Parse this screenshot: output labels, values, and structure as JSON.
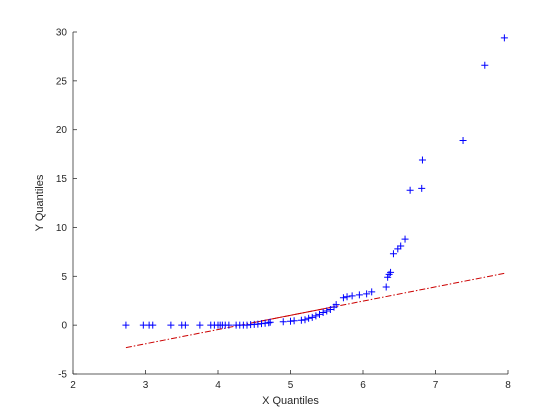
{
  "chart_data": {
    "type": "scatter",
    "title": "",
    "xlabel": "X Quantiles",
    "ylabel": "Y Quantiles",
    "xlim": [
      2,
      8
    ],
    "ylim": [
      -5,
      30
    ],
    "xticks": [
      2,
      3,
      4,
      5,
      6,
      7,
      8
    ],
    "yticks": [
      -5,
      0,
      5,
      10,
      15,
      20,
      25,
      30
    ],
    "grid": false,
    "legend": "none",
    "colors": {
      "points": "#0000ff",
      "reference_line": "#cc0000",
      "axes": "#262626"
    },
    "series": [
      {
        "marker": "plus",
        "points": [
          [
            2.73,
            0.0
          ],
          [
            2.97,
            0.0
          ],
          [
            3.05,
            0.0
          ],
          [
            3.1,
            0.0
          ],
          [
            3.35,
            0.0
          ],
          [
            3.5,
            0.0
          ],
          [
            3.55,
            0.0
          ],
          [
            3.75,
            0.0
          ],
          [
            3.9,
            0.0
          ],
          [
            3.95,
            0.0
          ],
          [
            4.0,
            0.0
          ],
          [
            4.03,
            0.0
          ],
          [
            4.06,
            0.0
          ],
          [
            4.1,
            0.0
          ],
          [
            4.15,
            0.0
          ],
          [
            4.25,
            0.0
          ],
          [
            4.3,
            0.0
          ],
          [
            4.35,
            0.0
          ],
          [
            4.4,
            0.0
          ],
          [
            4.45,
            0.05
          ],
          [
            4.5,
            0.08
          ],
          [
            4.55,
            0.1
          ],
          [
            4.6,
            0.15
          ],
          [
            4.65,
            0.2
          ],
          [
            4.7,
            0.25
          ],
          [
            4.72,
            0.3
          ],
          [
            4.9,
            0.35
          ],
          [
            5.0,
            0.4
          ],
          [
            5.05,
            0.45
          ],
          [
            5.15,
            0.5
          ],
          [
            5.2,
            0.55
          ],
          [
            5.25,
            0.7
          ],
          [
            5.3,
            0.8
          ],
          [
            5.35,
            0.95
          ],
          [
            5.4,
            1.1
          ],
          [
            5.45,
            1.3
          ],
          [
            5.5,
            1.45
          ],
          [
            5.55,
            1.6
          ],
          [
            5.6,
            1.85
          ],
          [
            5.63,
            2.1
          ],
          [
            5.73,
            2.8
          ],
          [
            5.78,
            2.9
          ],
          [
            5.85,
            3.0
          ],
          [
            5.95,
            3.1
          ],
          [
            6.05,
            3.2
          ],
          [
            6.12,
            3.4
          ],
          [
            6.32,
            3.9
          ],
          [
            6.34,
            4.9
          ],
          [
            6.36,
            5.2
          ],
          [
            6.38,
            5.4
          ],
          [
            6.42,
            7.3
          ],
          [
            6.48,
            7.8
          ],
          [
            6.52,
            8.1
          ],
          [
            6.58,
            8.8
          ],
          [
            6.65,
            13.8
          ],
          [
            6.81,
            14.0
          ],
          [
            6.82,
            16.9
          ],
          [
            7.38,
            18.9
          ],
          [
            7.68,
            26.6
          ],
          [
            7.95,
            29.4
          ]
        ]
      }
    ],
    "reference_line": {
      "style": "dash-dot",
      "solid_segment_x": [
        4.5,
        5.6
      ],
      "x": [
        2.73,
        7.95
      ],
      "y": [
        -2.3,
        5.3
      ]
    }
  }
}
